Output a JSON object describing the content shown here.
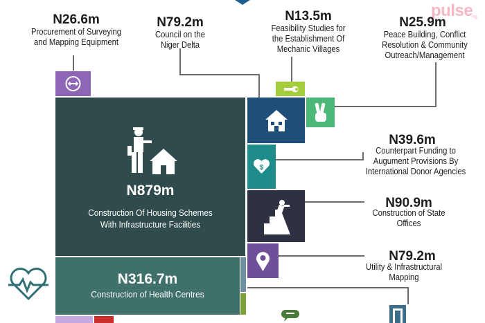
{
  "brand": {
    "logo": "pulse",
    "logo_suffix": ".ng"
  },
  "items": {
    "surveying": {
      "amount": "N26.6m",
      "label_lines": [
        "Procurement of Surveying",
        "and Mapping Equipment"
      ],
      "icon": "measure-icon",
      "color": "#8e66b6"
    },
    "niger_delta": {
      "amount": "N79.2m",
      "label_lines": [
        "Council on the",
        "Niger Delta"
      ],
      "icon": "house-icon",
      "color": "#1f4e79"
    },
    "feasibility": {
      "amount": "N13.5m",
      "label_lines": [
        "Feasibility Studies for",
        "the Establishment Of",
        "Mechanic Villages"
      ],
      "icon": "wrench-icon",
      "color": "#a5cd3b"
    },
    "peace": {
      "amount": "N25.9m",
      "label_lines": [
        "Peace Building, Conflict",
        "Resolution & Community",
        "Outreach/Management"
      ],
      "icon": "peace-hand-icon",
      "color": "#4cb878"
    },
    "housing": {
      "amount": "N879m",
      "label_lines": [
        "Construction Of Housing Schemes",
        "With Infrastructure Facilities"
      ],
      "icon": "builder-house-icon",
      "color": "#2f4b4c"
    },
    "counterpart": {
      "amount": "N39.6m",
      "label_lines": [
        "Counterpart Funding to",
        "Augument Provisions By",
        "International Donor Agencies"
      ],
      "icon": "heart-dollar-icon",
      "color": "#1e8c8a"
    },
    "state_offices": {
      "amount": "N90.9m",
      "label_lines": [
        "Construction of State",
        "Offices"
      ],
      "icon": "climber-icon",
      "color": "#2e3142"
    },
    "utility": {
      "amount": "N79.2m",
      "label_lines": [
        "Utility & Infrastructural",
        "Mapping"
      ],
      "icon": "map-pin-icon",
      "color": "#6f4e9a"
    },
    "health": {
      "amount": "N316.7m",
      "label_lines": [
        "Construction of Health Centres"
      ],
      "icon": "heartbeat-icon",
      "color": "#3f7069"
    }
  },
  "colors": {
    "connector": "#6b6b6b",
    "slate_blue": "#6e8fa0",
    "olive": "#7fa13a",
    "lavender": "#c7a8e0",
    "red": "#c9302c",
    "chat_green": "#4a7a3a",
    "door_blue": "#3c6e8a"
  }
}
